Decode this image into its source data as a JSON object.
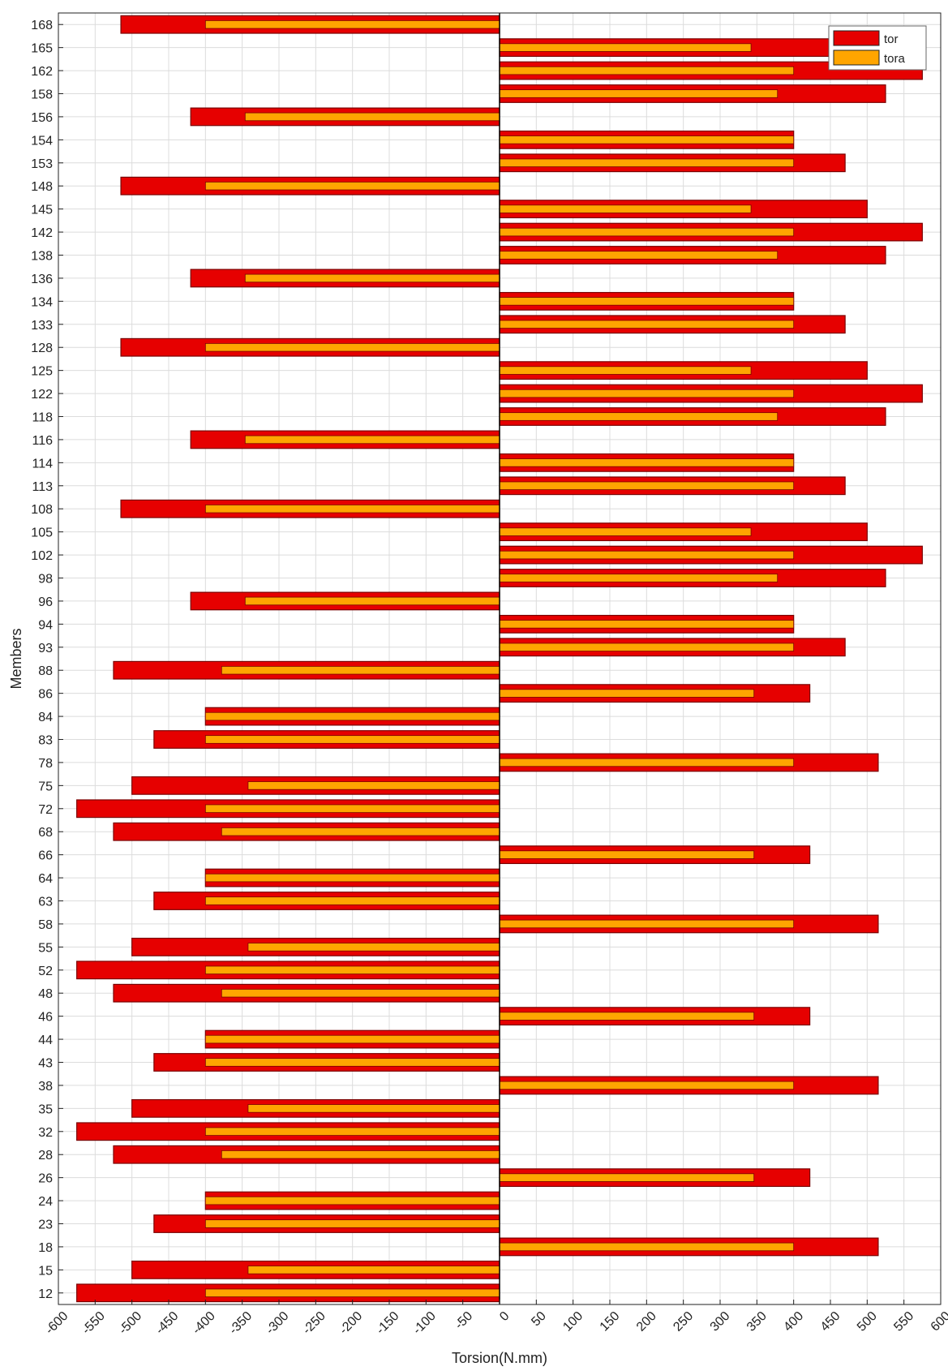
{
  "chart_data": {
    "type": "bar",
    "orientation": "horizontal",
    "xlabel": "Torsion(N.mm)",
    "ylabel": "Members",
    "xlim": [
      -600,
      600
    ],
    "xticks": [
      -600,
      -550,
      -500,
      -450,
      -400,
      -350,
      -300,
      -250,
      -200,
      -150,
      -100,
      -50,
      0,
      50,
      100,
      150,
      200,
      250,
      300,
      350,
      400,
      450,
      500,
      550,
      600
    ],
    "grid": true,
    "legend_position": "top-right",
    "categories": [
      "168",
      "165",
      "162",
      "158",
      "156",
      "154",
      "153",
      "148",
      "145",
      "142",
      "138",
      "136",
      "134",
      "133",
      "128",
      "125",
      "122",
      "118",
      "116",
      "114",
      "113",
      "108",
      "105",
      "102",
      "98",
      "96",
      "94",
      "93",
      "88",
      "86",
      "84",
      "83",
      "78",
      "75",
      "72",
      "68",
      "66",
      "64",
      "63",
      "58",
      "55",
      "52",
      "48",
      "46",
      "44",
      "43",
      "38",
      "35",
      "32",
      "28",
      "26",
      "24",
      "23",
      "18",
      "15",
      "12"
    ],
    "series": [
      {
        "name": "tor",
        "color": "#e60000",
        "values": [
          -515,
          500,
          575,
          525,
          -420,
          400,
          470,
          -515,
          500,
          575,
          525,
          -420,
          400,
          470,
          -515,
          500,
          575,
          525,
          -420,
          400,
          470,
          -515,
          500,
          575,
          525,
          -420,
          400,
          470,
          -525,
          422,
          -400,
          -470,
          515,
          -500,
          -575,
          -525,
          422,
          -400,
          -470,
          515,
          -500,
          -575,
          -525,
          422,
          -400,
          -470,
          515,
          -500,
          -575,
          -525,
          422,
          -400,
          -470,
          515,
          -500,
          -575
        ]
      },
      {
        "name": "tora",
        "color": "#ffa500",
        "values": [
          -400,
          342,
          400,
          378,
          -346,
          400,
          400,
          -400,
          342,
          400,
          378,
          -346,
          400,
          400,
          -400,
          342,
          400,
          378,
          -346,
          400,
          400,
          -400,
          342,
          400,
          378,
          -346,
          400,
          400,
          -378,
          346,
          -400,
          -400,
          400,
          -342,
          -400,
          -378,
          346,
          -400,
          -400,
          400,
          -342,
          -400,
          -378,
          346,
          -400,
          -400,
          400,
          -342,
          -400,
          -378,
          346,
          -400,
          -400,
          400,
          -342,
          -400
        ]
      }
    ]
  }
}
